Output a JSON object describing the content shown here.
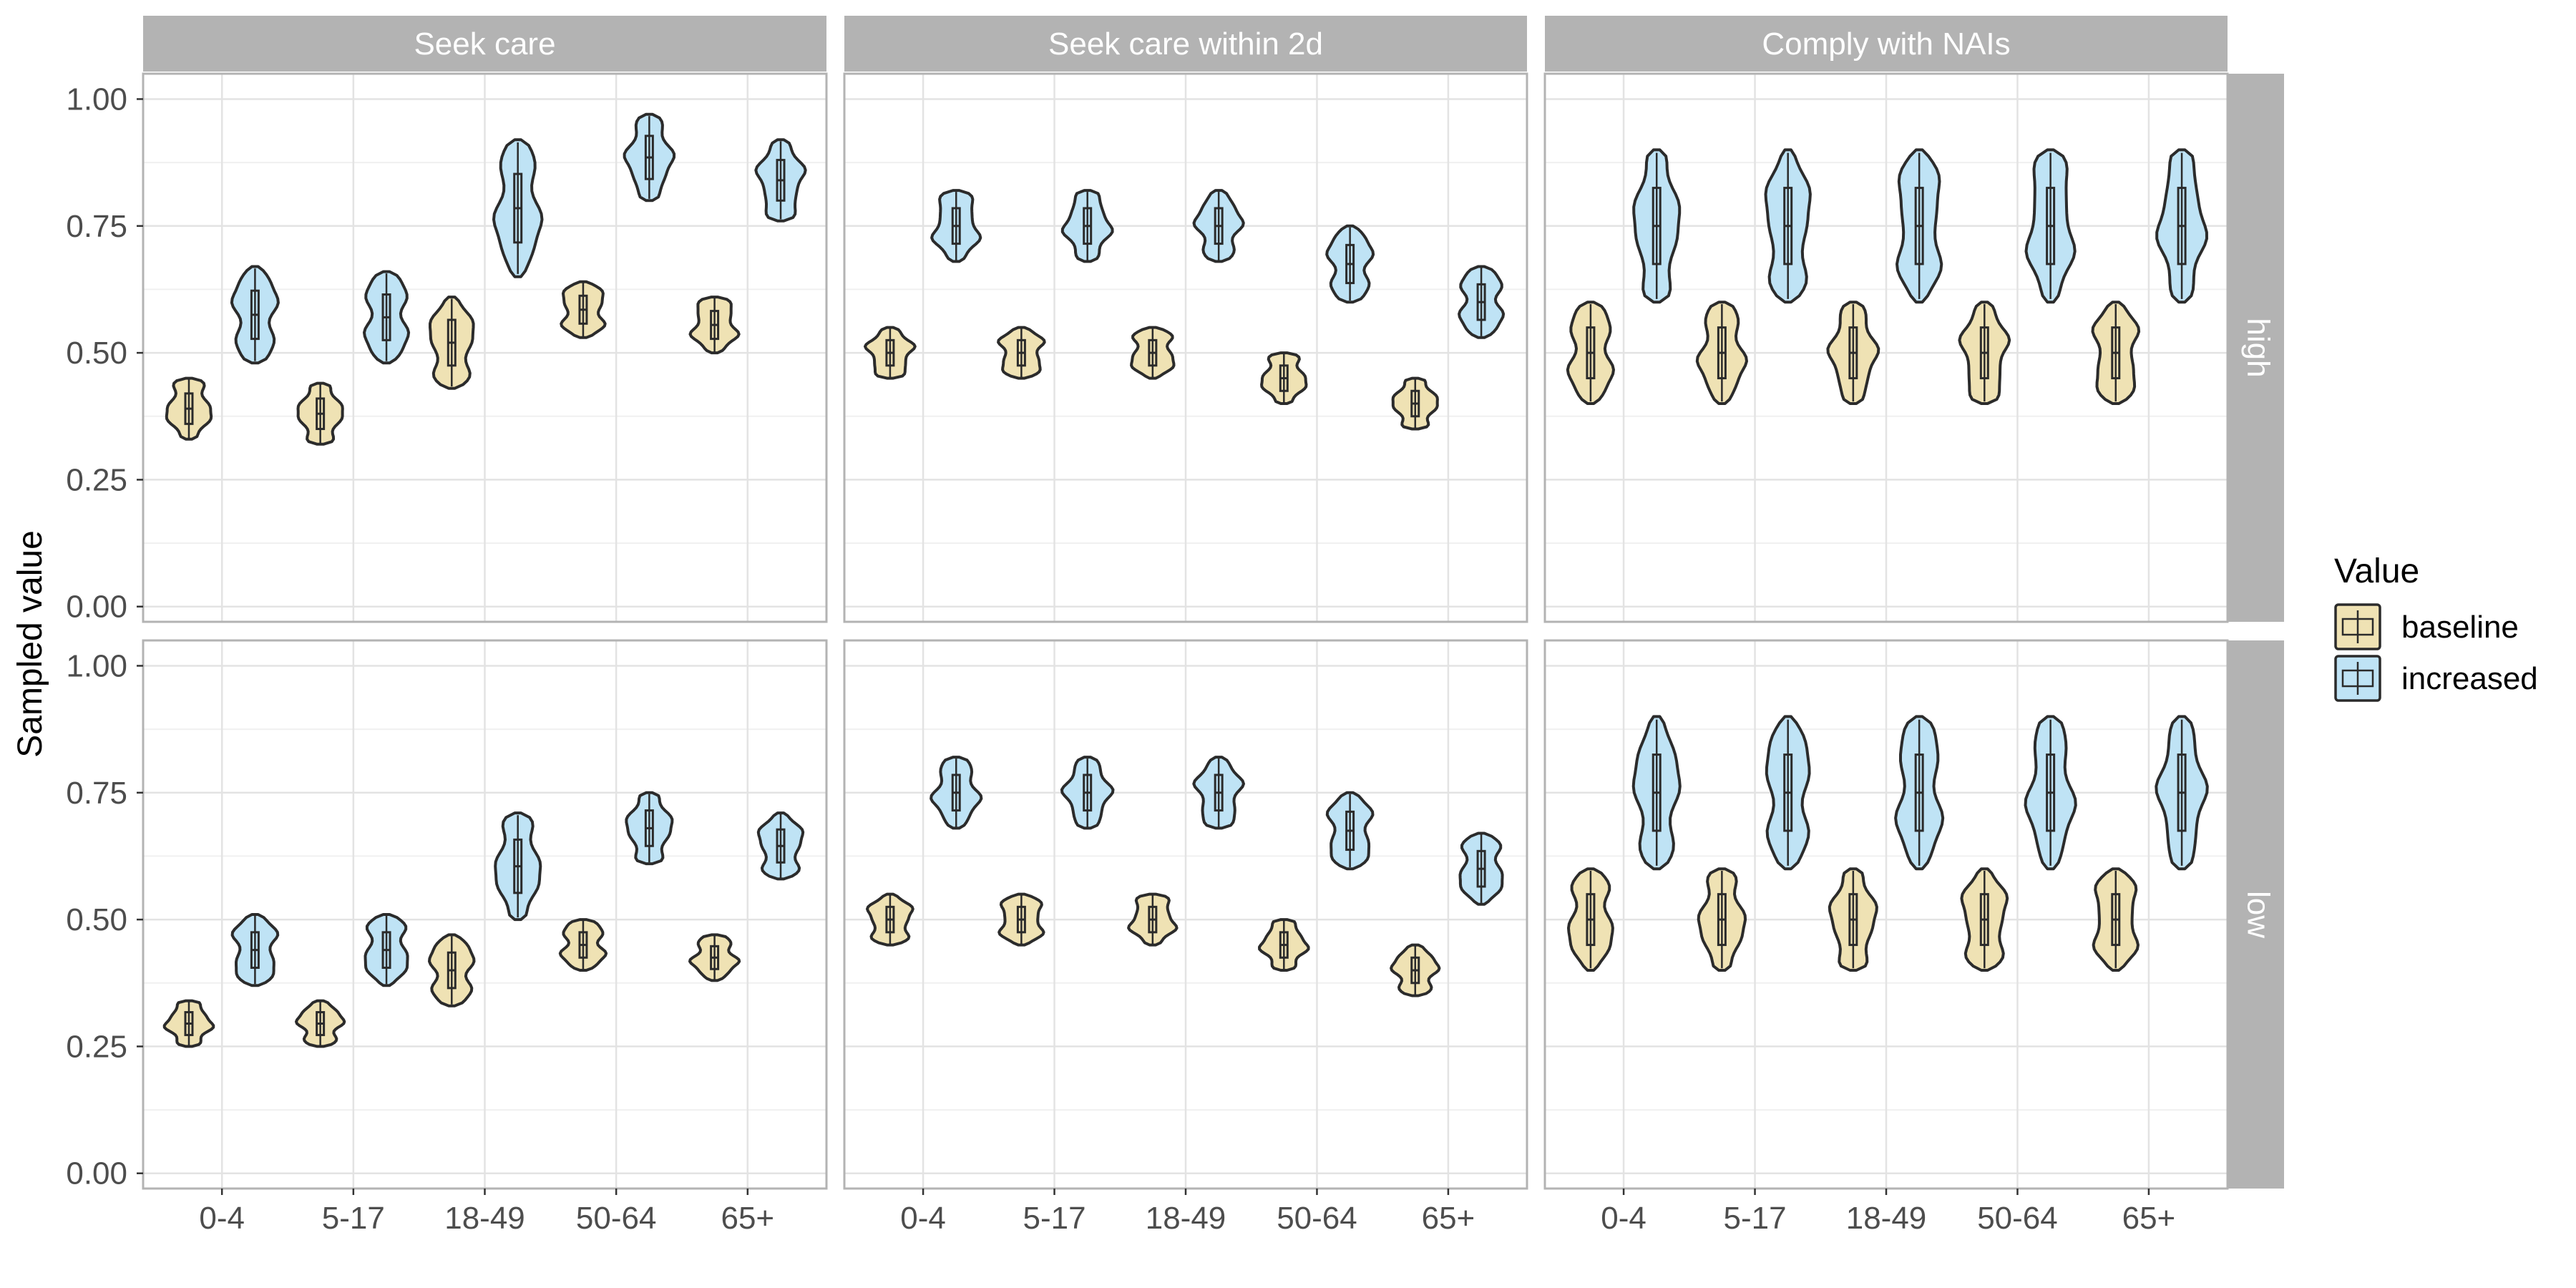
{
  "chart_data": {
    "type": "violin",
    "ylabel": "Sampled value",
    "xlabel": "",
    "ylim": [
      -0.03,
      1.05
    ],
    "yticks": [
      "0.00",
      "0.25",
      "0.50",
      "0.75",
      "1.00"
    ],
    "categories": [
      "0-4",
      "5-17",
      "18-49",
      "50-64",
      "65+"
    ],
    "columns": [
      "Seek care",
      "Seek care within 2d",
      "Comply with NAIs"
    ],
    "rows": [
      "high",
      "low"
    ],
    "legend": {
      "title": "Value",
      "position": "right",
      "entries": [
        {
          "label": "baseline",
          "color": "#efe2b4"
        },
        {
          "label": "increased",
          "color": "#bfe3f5"
        }
      ]
    },
    "grid": true,
    "panels": [
      {
        "row": "high",
        "column": "Seek care",
        "series": [
          {
            "name": "baseline",
            "ranges": [
              [
                0.33,
                0.45
              ],
              [
                0.32,
                0.44
              ],
              [
                0.43,
                0.61
              ],
              [
                0.53,
                0.64
              ],
              [
                0.5,
                0.61
              ]
            ]
          },
          {
            "name": "increased",
            "ranges": [
              [
                0.48,
                0.67
              ],
              [
                0.48,
                0.66
              ],
              [
                0.65,
                0.92
              ],
              [
                0.8,
                0.97
              ],
              [
                0.76,
                0.92
              ]
            ]
          }
        ]
      },
      {
        "row": "high",
        "column": "Seek care within 2d",
        "series": [
          {
            "name": "baseline",
            "ranges": [
              [
                0.45,
                0.55
              ],
              [
                0.45,
                0.55
              ],
              [
                0.45,
                0.55
              ],
              [
                0.4,
                0.5
              ],
              [
                0.35,
                0.45
              ]
            ]
          },
          {
            "name": "increased",
            "ranges": [
              [
                0.68,
                0.82
              ],
              [
                0.68,
                0.82
              ],
              [
                0.68,
                0.82
              ],
              [
                0.6,
                0.75
              ],
              [
                0.53,
                0.67
              ]
            ]
          }
        ]
      },
      {
        "row": "high",
        "column": "Comply with NAIs",
        "series": [
          {
            "name": "baseline",
            "ranges": [
              [
                0.4,
                0.6
              ],
              [
                0.4,
                0.6
              ],
              [
                0.4,
                0.6
              ],
              [
                0.4,
                0.6
              ],
              [
                0.4,
                0.6
              ]
            ]
          },
          {
            "name": "increased",
            "ranges": [
              [
                0.6,
                0.9
              ],
              [
                0.6,
                0.9
              ],
              [
                0.6,
                0.9
              ],
              [
                0.6,
                0.9
              ],
              [
                0.6,
                0.9
              ]
            ]
          }
        ]
      },
      {
        "row": "low",
        "column": "Seek care",
        "series": [
          {
            "name": "baseline",
            "ranges": [
              [
                0.25,
                0.34
              ],
              [
                0.25,
                0.34
              ],
              [
                0.33,
                0.47
              ],
              [
                0.4,
                0.5
              ],
              [
                0.38,
                0.47
              ]
            ]
          },
          {
            "name": "increased",
            "ranges": [
              [
                0.37,
                0.51
              ],
              [
                0.37,
                0.51
              ],
              [
                0.5,
                0.71
              ],
              [
                0.61,
                0.75
              ],
              [
                0.58,
                0.71
              ]
            ]
          }
        ]
      },
      {
        "row": "low",
        "column": "Seek care within 2d",
        "series": [
          {
            "name": "baseline",
            "ranges": [
              [
                0.45,
                0.55
              ],
              [
                0.45,
                0.55
              ],
              [
                0.45,
                0.55
              ],
              [
                0.4,
                0.5
              ],
              [
                0.35,
                0.45
              ]
            ]
          },
          {
            "name": "increased",
            "ranges": [
              [
                0.68,
                0.82
              ],
              [
                0.68,
                0.82
              ],
              [
                0.68,
                0.82
              ],
              [
                0.6,
                0.75
              ],
              [
                0.53,
                0.67
              ]
            ]
          }
        ]
      },
      {
        "row": "low",
        "column": "Comply with NAIs",
        "series": [
          {
            "name": "baseline",
            "ranges": [
              [
                0.4,
                0.6
              ],
              [
                0.4,
                0.6
              ],
              [
                0.4,
                0.6
              ],
              [
                0.4,
                0.6
              ],
              [
                0.4,
                0.6
              ]
            ]
          },
          {
            "name": "increased",
            "ranges": [
              [
                0.6,
                0.9
              ],
              [
                0.6,
                0.9
              ],
              [
                0.6,
                0.9
              ],
              [
                0.6,
                0.9
              ],
              [
                0.6,
                0.9
              ]
            ]
          }
        ]
      }
    ]
  }
}
